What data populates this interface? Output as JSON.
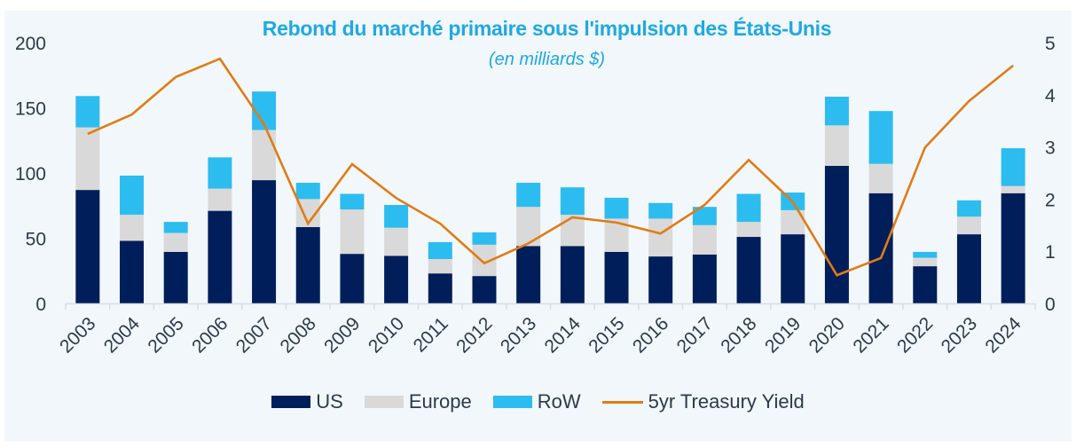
{
  "chart_data": {
    "type": "bar",
    "stacked": true,
    "title": "Rebond du marché primaire sous l'impulsion des États-Unis",
    "subtitle": "(en milliards $)",
    "xlabel": "",
    "ylabel": "",
    "y2label": "",
    "categories": [
      "2003",
      "2004",
      "2005",
      "2006",
      "2007",
      "2008",
      "2009",
      "2010",
      "2011",
      "2012",
      "2013",
      "2014",
      "2015",
      "2016",
      "2017",
      "2018",
      "2019",
      "2020",
      "2021",
      "2022",
      "2023",
      "2024"
    ],
    "ylim": [
      0,
      200
    ],
    "yticks": [
      0,
      50,
      100,
      150,
      200
    ],
    "y2lim": [
      0,
      5
    ],
    "y2ticks": [
      0,
      1,
      2,
      3,
      4,
      5
    ],
    "grid": false,
    "legend_position": "bottom",
    "series": [
      {
        "name": "US",
        "type": "bar",
        "axis": "left",
        "color": "#001e5a",
        "values": [
          87,
          48,
          39.5,
          71,
          94.5,
          58.5,
          38,
          36.5,
          23,
          21,
          44,
          44,
          39.5,
          36,
          37.5,
          51,
          53,
          105.5,
          84.5,
          28.5,
          53,
          84.5
        ]
      },
      {
        "name": "Europe",
        "type": "bar",
        "axis": "left",
        "color": "#d9d9d9",
        "values": [
          48,
          20,
          14.5,
          17,
          38.5,
          21.5,
          34,
          21.5,
          11,
          24,
          30,
          24,
          25.5,
          29,
          22.5,
          11.5,
          18.5,
          31,
          22.5,
          6.5,
          13.5,
          5.5
        ]
      },
      {
        "name": "RoW",
        "type": "bar",
        "axis": "left",
        "color": "#2dbcef",
        "values": [
          24,
          30,
          8.5,
          24,
          29.5,
          12.5,
          12,
          17.5,
          13,
          9.5,
          18.5,
          21,
          16,
          12,
          14,
          21.5,
          13.5,
          22,
          40.5,
          4.5,
          12.5,
          29
        ]
      },
      {
        "name": "5yr Treasury Yield",
        "type": "line",
        "axis": "right",
        "color": "#e07c14",
        "values": [
          3.25,
          3.62,
          4.34,
          4.69,
          3.44,
          1.53,
          2.67,
          2.02,
          1.53,
          0.77,
          1.15,
          1.65,
          1.55,
          1.34,
          1.89,
          2.75,
          1.95,
          0.54,
          0.87,
          2.99,
          3.88,
          4.56
        ]
      }
    ]
  }
}
